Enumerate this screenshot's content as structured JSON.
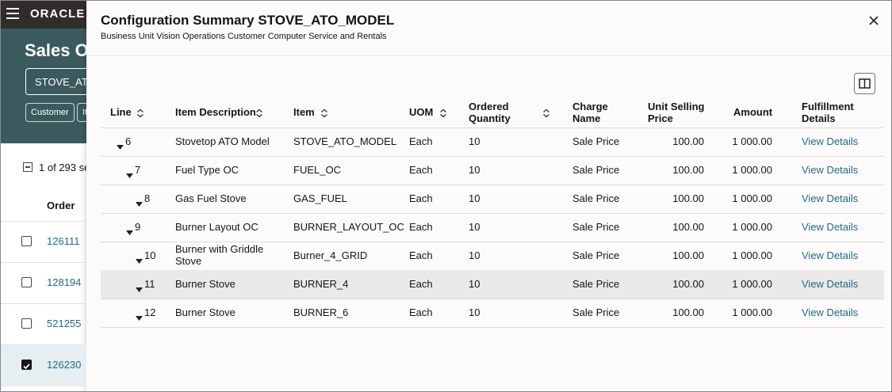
{
  "background": {
    "brand": "ORACLE",
    "page_title": "Sales Or",
    "search_value": "STOVE_ATO",
    "filters": [
      "Customer",
      "It"
    ],
    "selection_count": "1 of 293 se",
    "order_header": "Order",
    "orders": [
      "126111",
      "128194",
      "521255",
      "126230"
    ]
  },
  "dialog": {
    "title": "Configuration Summary STOVE_ATO_MODEL",
    "subtitle": "Business Unit Vision Operations Customer Computer Service and Rentals",
    "table": {
      "columns": [
        "Line",
        "Item Description",
        "Item",
        "UOM",
        "Ordered Quantity",
        "Charge Name",
        "Unit Selling Price",
        "Amount",
        "Fulfillment Details"
      ],
      "rows": [
        [
          "6",
          "Stovetop ATO Model",
          "STOVE_ATO_MODEL",
          "Each",
          "10",
          "Sale Price",
          "100.00",
          "1 000.00",
          "View Details"
        ],
        [
          "7",
          "Fuel Type OC",
          "FUEL_OC",
          "Each",
          "10",
          "Sale Price",
          "100.00",
          "1 000.00",
          "View Details"
        ],
        [
          "8",
          "Gas Fuel Stove",
          "GAS_FUEL",
          "Each",
          "10",
          "Sale Price",
          "100.00",
          "1 000.00",
          "View Details"
        ],
        [
          "9",
          "Burner Layout OC",
          "BURNER_LAYOUT_OC",
          "Each",
          "10",
          "Sale Price",
          "100.00",
          "1 000.00",
          "View Details"
        ],
        [
          "10",
          "Burner with Griddle Stove",
          "Burner_4_GRID",
          "Each",
          "10",
          "Sale Price",
          "100.00",
          "1 000.00",
          "View Details"
        ],
        [
          "11",
          "Burner Stove",
          "BURNER_4",
          "Each",
          "10",
          "Sale Price",
          "100.00",
          "1 000.00",
          "View Details"
        ],
        [
          "12",
          "Burner Stove",
          "BURNER_6",
          "Each",
          "10",
          "Sale Price",
          "100.00",
          "1 000.00",
          "View Details"
        ]
      ]
    }
  }
}
